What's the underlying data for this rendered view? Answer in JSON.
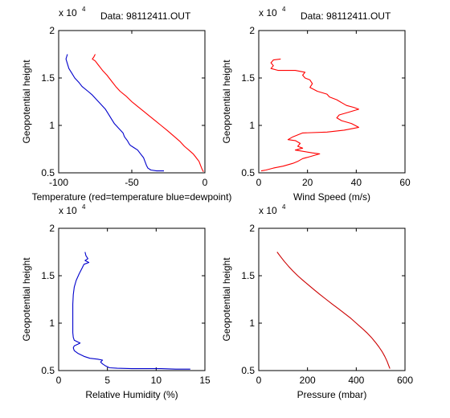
{
  "chart_data": [
    {
      "type": "line",
      "title": "Data: 98112411.OUT",
      "xlabel": "Temperature (red=temperature blue=dewpoint)",
      "ylabel": "Geopotential height",
      "y_multiplier": "x 10",
      "y_exponent": "4",
      "xlim": [
        -100,
        0
      ],
      "ylim": [
        0.5,
        2.0
      ],
      "xticks": [
        -100,
        -50,
        0
      ],
      "yticks": [
        0.5,
        1,
        1.5,
        2
      ],
      "series": [
        {
          "color": "#ff0000",
          "points": [
            [
              -75,
              1.75
            ],
            [
              -76,
              1.72
            ],
            [
              -77,
              1.7
            ],
            [
              -75,
              1.68
            ],
            [
              -73,
              1.64
            ],
            [
              -70,
              1.58
            ],
            [
              -67,
              1.53
            ],
            [
              -64,
              1.47
            ],
            [
              -61,
              1.41
            ],
            [
              -58,
              1.36
            ],
            [
              -54,
              1.31
            ],
            [
              -50,
              1.25
            ],
            [
              -46,
              1.2
            ],
            [
              -42,
              1.15
            ],
            [
              -38,
              1.1
            ],
            [
              -34,
              1.05
            ],
            [
              -30,
              1.0
            ],
            [
              -26,
              0.95
            ],
            [
              -23,
              0.91
            ],
            [
              -20,
              0.87
            ],
            [
              -17,
              0.83
            ],
            [
              -14,
              0.78
            ],
            [
              -11,
              0.74
            ],
            [
              -8,
              0.7
            ],
            [
              -6,
              0.66
            ],
            [
              -4,
              0.62
            ],
            [
              -3,
              0.58
            ],
            [
              -2,
              0.54
            ],
            [
              -1,
              0.51
            ]
          ]
        },
        {
          "color": "#0000cc",
          "points": [
            [
              -94,
              1.75
            ],
            [
              -95,
              1.7
            ],
            [
              -94,
              1.65
            ],
            [
              -93,
              1.6
            ],
            [
              -91,
              1.55
            ],
            [
              -89,
              1.5
            ],
            [
              -86,
              1.45
            ],
            [
              -84,
              1.41
            ],
            [
              -80,
              1.36
            ],
            [
              -77,
              1.32
            ],
            [
              -74,
              1.27
            ],
            [
              -71,
              1.22
            ],
            [
              -68,
              1.17
            ],
            [
              -66,
              1.12
            ],
            [
              -64,
              1.07
            ],
            [
              -62,
              1.02
            ],
            [
              -59,
              0.97
            ],
            [
              -56,
              0.92
            ],
            [
              -55,
              0.88
            ],
            [
              -53,
              0.84
            ],
            [
              -52,
              0.81
            ],
            [
              -51,
              0.79
            ],
            [
              -49,
              0.77
            ],
            [
              -46,
              0.74
            ],
            [
              -44,
              0.7
            ],
            [
              -42,
              0.66
            ],
            [
              -41,
              0.62
            ],
            [
              -40,
              0.58
            ],
            [
              -39,
              0.55
            ],
            [
              -37,
              0.53
            ],
            [
              -33,
              0.52
            ],
            [
              -28,
              0.52
            ]
          ]
        }
      ]
    },
    {
      "type": "line",
      "title": "Data: 98112411.OUT",
      "xlabel": "Wind Speed (m/s)",
      "ylabel": "Geopotential height",
      "y_multiplier": "x 10",
      "y_exponent": "4",
      "xlim": [
        0,
        60
      ],
      "ylim": [
        0.5,
        2.0
      ],
      "xticks": [
        0,
        20,
        40,
        60
      ],
      "yticks": [
        0.5,
        1,
        1.5,
        2
      ],
      "series": [
        {
          "color": "#ff0000",
          "points": [
            [
              9,
              1.7
            ],
            [
              6,
              1.69
            ],
            [
              5,
              1.66
            ],
            [
              6,
              1.63
            ],
            [
              5,
              1.6
            ],
            [
              8,
              1.58
            ],
            [
              15,
              1.58
            ],
            [
              19,
              1.56
            ],
            [
              18,
              1.53
            ],
            [
              19,
              1.5
            ],
            [
              21,
              1.48
            ],
            [
              22,
              1.44
            ],
            [
              21,
              1.4
            ],
            [
              24,
              1.36
            ],
            [
              28,
              1.33
            ],
            [
              29,
              1.3
            ],
            [
              32,
              1.27
            ],
            [
              34,
              1.24
            ],
            [
              36,
              1.21
            ],
            [
              39,
              1.19
            ],
            [
              41,
              1.17
            ],
            [
              37,
              1.14
            ],
            [
              33,
              1.11
            ],
            [
              32,
              1.08
            ],
            [
              34,
              1.05
            ],
            [
              38,
              1.02
            ],
            [
              41,
              0.98
            ],
            [
              35,
              0.95
            ],
            [
              28,
              0.93
            ],
            [
              18,
              0.92
            ],
            [
              14,
              0.88
            ],
            [
              12,
              0.85
            ],
            [
              15,
              0.84
            ],
            [
              17,
              0.81
            ],
            [
              16,
              0.78
            ],
            [
              18,
              0.76
            ],
            [
              15,
              0.74
            ],
            [
              22,
              0.71
            ],
            [
              25,
              0.7
            ],
            [
              21,
              0.67
            ],
            [
              18,
              0.65
            ],
            [
              16,
              0.62
            ],
            [
              14,
              0.6
            ],
            [
              10,
              0.57
            ],
            [
              6,
              0.55
            ],
            [
              3,
              0.53
            ],
            [
              1,
              0.52
            ]
          ]
        }
      ]
    },
    {
      "type": "line",
      "title": "",
      "xlabel": "Relative Humidity (%)",
      "ylabel": "Geopotential height",
      "y_multiplier": "x 10",
      "y_exponent": "4",
      "xlim": [
        0,
        15
      ],
      "ylim": [
        0.5,
        2.0
      ],
      "xticks": [
        0,
        5,
        10,
        15
      ],
      "yticks": [
        0.5,
        1,
        1.5,
        2
      ],
      "series": [
        {
          "color": "#0000cc",
          "points": [
            [
              2.7,
              1.75
            ],
            [
              2.8,
              1.71
            ],
            [
              3.0,
              1.68
            ],
            [
              2.7,
              1.66
            ],
            [
              3.1,
              1.64
            ],
            [
              2.6,
              1.62
            ],
            [
              2.4,
              1.58
            ],
            [
              2.1,
              1.52
            ],
            [
              1.8,
              1.45
            ],
            [
              1.6,
              1.38
            ],
            [
              1.5,
              1.3
            ],
            [
              1.45,
              1.2
            ],
            [
              1.45,
              1.1
            ],
            [
              1.45,
              1.0
            ],
            [
              1.45,
              0.9
            ],
            [
              1.5,
              0.85
            ],
            [
              1.6,
              0.82
            ],
            [
              2.0,
              0.8
            ],
            [
              2.2,
              0.79
            ],
            [
              2.0,
              0.78
            ],
            [
              1.6,
              0.76
            ],
            [
              1.5,
              0.74
            ],
            [
              1.6,
              0.71
            ],
            [
              2.0,
              0.68
            ],
            [
              2.6,
              0.65
            ],
            [
              3.2,
              0.63
            ],
            [
              4.0,
              0.62
            ],
            [
              4.5,
              0.61
            ],
            [
              4.3,
              0.59
            ],
            [
              4.5,
              0.57
            ],
            [
              4.8,
              0.55
            ],
            [
              5.0,
              0.54
            ],
            [
              5.2,
              0.53
            ],
            [
              6.0,
              0.525
            ],
            [
              7.5,
              0.52
            ],
            [
              9.0,
              0.52
            ],
            [
              10.5,
              0.52
            ],
            [
              12.0,
              0.515
            ],
            [
              13.5,
              0.515
            ]
          ]
        }
      ]
    },
    {
      "type": "line",
      "title": "",
      "xlabel": "Pressure (mbar)",
      "ylabel": "Geopotential height",
      "y_multiplier": "x 10",
      "y_exponent": "4",
      "xlim": [
        0,
        600
      ],
      "ylim": [
        0.5,
        2.0
      ],
      "xticks": [
        0,
        200,
        400,
        600
      ],
      "yticks": [
        0.5,
        1,
        1.5,
        2
      ],
      "series": [
        {
          "color": "#cc0000",
          "points": [
            [
              75,
              1.75
            ],
            [
              90,
              1.7
            ],
            [
              105,
              1.65
            ],
            [
              122,
              1.6
            ],
            [
              140,
              1.55
            ],
            [
              160,
              1.5
            ],
            [
              182,
              1.45
            ],
            [
              205,
              1.4
            ],
            [
              228,
              1.35
            ],
            [
              252,
              1.3
            ],
            [
              277,
              1.25
            ],
            [
              302,
              1.2
            ],
            [
              328,
              1.15
            ],
            [
              353,
              1.1
            ],
            [
              378,
              1.05
            ],
            [
              400,
              1.0
            ],
            [
              422,
              0.95
            ],
            [
              443,
              0.9
            ],
            [
              462,
              0.85
            ],
            [
              478,
              0.8
            ],
            [
              493,
              0.75
            ],
            [
              506,
              0.7
            ],
            [
              517,
              0.65
            ],
            [
              526,
              0.6
            ],
            [
              532,
              0.56
            ],
            [
              538,
              0.52
            ]
          ]
        }
      ]
    }
  ]
}
